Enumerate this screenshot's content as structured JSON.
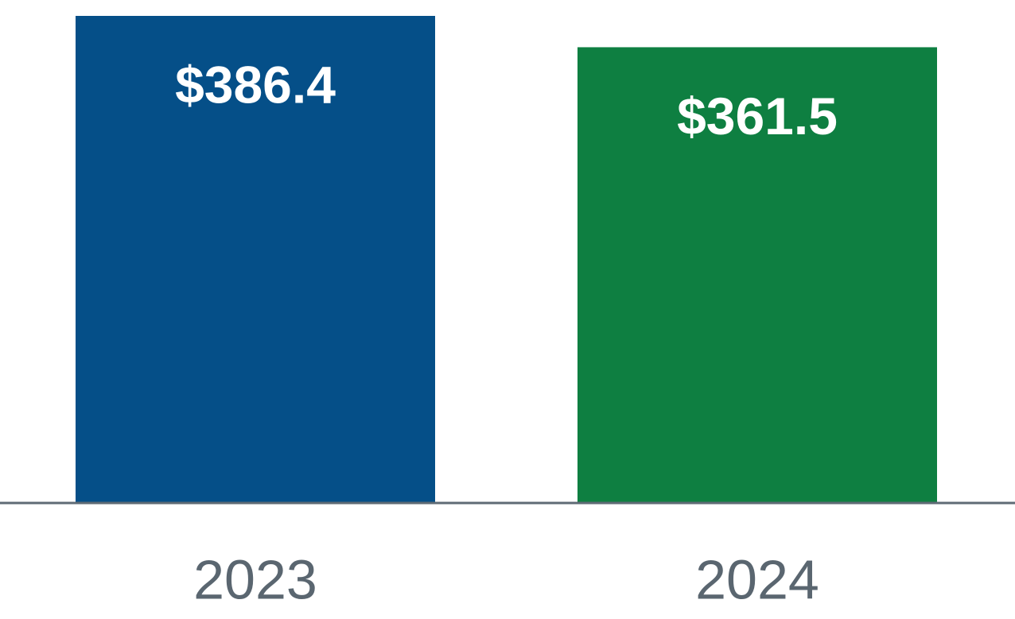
{
  "chart_data": {
    "type": "bar",
    "categories": [
      "2023",
      "2024"
    ],
    "values": [
      386.4,
      361.5
    ],
    "value_labels": [
      "$386.4",
      "$361.5"
    ],
    "colors": [
      "#054f88",
      "#0e7f41"
    ]
  }
}
